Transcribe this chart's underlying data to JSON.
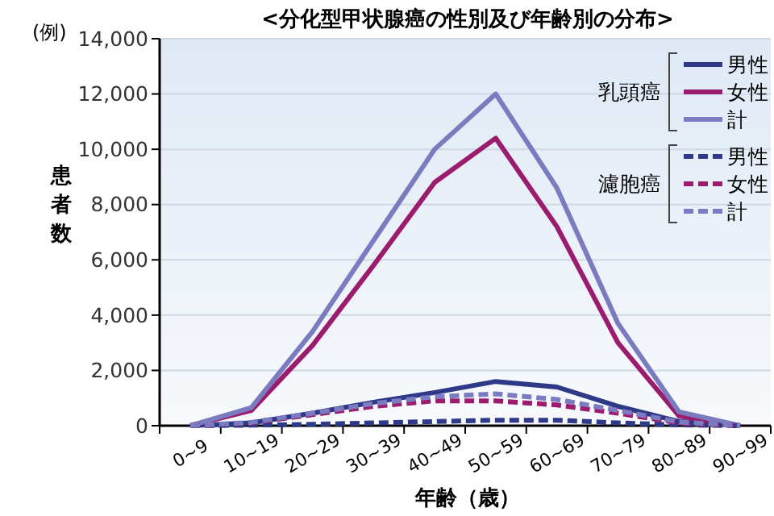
{
  "chart_data": {
    "type": "line",
    "title": "<分化型甲状腺癌の性別及び年齢別の分布>",
    "xlabel": "年齢（歳）",
    "ylabel": "患者数",
    "annotations": [
      "(例)",
      "乳頭癌",
      "濾胞癌"
    ],
    "categories": [
      "0~9",
      "10~19",
      "20~29",
      "30~39",
      "40~49",
      "50~59",
      "60~69",
      "70~79",
      "80~89",
      "90~99"
    ],
    "ylim": [
      0,
      14000
    ],
    "yticks": [
      0,
      {
        "value": 2000,
        "label": "2,000"
      },
      {
        "value": 4000,
        "label": "4,000"
      },
      {
        "value": 6000,
        "label": "6,000"
      },
      {
        "value": 8000,
        "label": "8,000"
      },
      {
        "value": 10000,
        "label": "10,000"
      },
      {
        "value": 12000,
        "label": "12,000"
      },
      {
        "value": 14000,
        "label": "14,000"
      }
    ],
    "grid": "y",
    "legend": "top right",
    "marker": "none",
    "series": [
      {
        "name": "男性",
        "color": "#2e3a87",
        "line_style": "solid",
        "values": [
          0,
          100,
          450,
          850,
          1200,
          1600,
          1400,
          700,
          150,
          0
        ]
      },
      {
        "name": "女性",
        "color": "#9b1b6e",
        "line_style": "solid",
        "values": [
          0,
          550,
          2900,
          5800,
          8800,
          10400,
          7200,
          3000,
          350,
          0
        ]
      },
      {
        "name": "計",
        "color": "#7b7bc0",
        "line_style": "solid",
        "values": [
          0,
          650,
          3400,
          6700,
          10000,
          12000,
          8600,
          3700,
          500,
          0
        ]
      },
      {
        "name": "男性",
        "color": "#2e3a87",
        "line_style": "dashed",
        "values": [
          0,
          20,
          50,
          100,
          150,
          200,
          200,
          100,
          30,
          0
        ]
      },
      {
        "name": "女性",
        "color": "#9b1b6e",
        "line_style": "dashed",
        "values": [
          0,
          100,
          400,
          700,
          900,
          900,
          750,
          450,
          100,
          0
        ]
      },
      {
        "name": "計",
        "color": "#7b7bc0",
        "line_style": "dashed",
        "values": [
          0,
          120,
          450,
          800,
          1050,
          1150,
          950,
          550,
          130,
          0
        ]
      }
    ]
  }
}
